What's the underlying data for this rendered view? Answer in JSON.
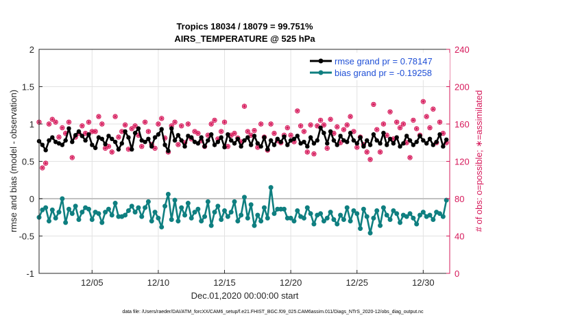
{
  "chart_data": {
    "type": "line",
    "title_line1": "Tropics 18034 / 18079 = 99.751%",
    "title_line2": "AIRS_TEMPERATURE @ 525 hPa",
    "xlabel": "Dec.01,2020 00:00:00 start",
    "ylabel_left": "rmse and bias (model - observation)",
    "ylabel_right": "# of obs: o=possible; ∗=assimilated",
    "xlim": [
      0,
      31
    ],
    "ylim_left": [
      -1,
      2
    ],
    "ylim_right": [
      0,
      240
    ],
    "x_ticks": [
      {
        "value": 4,
        "label": "12/05"
      },
      {
        "value": 9,
        "label": "12/10"
      },
      {
        "value": 14,
        "label": "12/15"
      },
      {
        "value": 19,
        "label": "12/20"
      },
      {
        "value": 24,
        "label": "12/25"
      },
      {
        "value": 29,
        "label": "12/30"
      }
    ],
    "yleft_ticks": [
      {
        "value": -1,
        "label": "-1"
      },
      {
        "value": -0.5,
        "label": "-0.5"
      },
      {
        "value": 0,
        "label": "0"
      },
      {
        "value": 0.5,
        "label": "0.5"
      },
      {
        "value": 1,
        "label": "1"
      },
      {
        "value": 1.5,
        "label": "1.5"
      },
      {
        "value": 2,
        "label": "2"
      }
    ],
    "yright_ticks": [
      {
        "value": 0,
        "label": "0"
      },
      {
        "value": 40,
        "label": "40"
      },
      {
        "value": 80,
        "label": "80"
      },
      {
        "value": 120,
        "label": "120"
      },
      {
        "value": 160,
        "label": "160"
      },
      {
        "value": 200,
        "label": "200"
      },
      {
        "value": 240,
        "label": "240"
      }
    ],
    "grid": true,
    "legend_position": "top-right",
    "legend": [
      {
        "name": "rmse grand pr = 0.78147",
        "color": "#000000"
      },
      {
        "name": "bias grand pr = -0.19258",
        "color": "#0f7f80"
      }
    ],
    "zero_line": 0,
    "series": [
      {
        "name": "rmse",
        "axis": "left",
        "color": "#000000",
        "x": [
          0.0,
          0.25,
          0.5,
          0.75,
          1.0,
          1.25,
          1.5,
          1.75,
          2.0,
          2.25,
          2.5,
          2.75,
          3.0,
          3.25,
          3.5,
          3.75,
          4.0,
          4.25,
          4.5,
          4.75,
          5.0,
          5.25,
          5.5,
          5.75,
          6.0,
          6.25,
          6.5,
          6.75,
          7.0,
          7.25,
          7.5,
          7.75,
          8.0,
          8.25,
          8.5,
          8.75,
          9.0,
          9.25,
          9.5,
          9.75,
          10.0,
          10.25,
          10.5,
          10.75,
          11.0,
          11.25,
          11.5,
          11.75,
          12.0,
          12.25,
          12.5,
          12.75,
          13.0,
          13.25,
          13.5,
          13.75,
          14.0,
          14.25,
          14.5,
          14.75,
          15.0,
          15.25,
          15.5,
          15.75,
          16.0,
          16.25,
          16.5,
          16.75,
          17.0,
          17.25,
          17.5,
          17.75,
          18.0,
          18.25,
          18.5,
          18.75,
          19.0,
          19.25,
          19.5,
          19.75,
          20.0,
          20.25,
          20.5,
          20.75,
          21.0,
          21.25,
          21.5,
          21.75,
          22.0,
          22.25,
          22.5,
          22.75,
          23.0,
          23.25,
          23.5,
          23.75,
          24.0,
          24.25,
          24.5,
          24.75,
          25.0,
          25.25,
          25.5,
          25.75,
          26.0,
          26.25,
          26.5,
          26.75,
          27.0,
          27.25,
          27.5,
          27.75,
          28.0,
          28.25,
          28.5,
          28.75,
          29.0,
          29.25,
          29.5,
          29.75,
          30.0,
          30.25,
          30.5,
          30.75
        ],
        "values": [
          0.77,
          0.72,
          0.65,
          0.78,
          0.82,
          0.76,
          0.74,
          0.72,
          0.78,
          0.94,
          0.76,
          0.85,
          0.9,
          0.84,
          0.78,
          0.86,
          0.72,
          0.68,
          0.82,
          0.8,
          0.73,
          0.84,
          0.8,
          0.76,
          0.66,
          0.74,
          0.9,
          0.82,
          0.66,
          0.88,
          0.94,
          0.78,
          0.76,
          0.8,
          0.7,
          0.82,
          0.86,
          0.93,
          0.72,
          0.64,
          0.94,
          0.78,
          0.85,
          0.78,
          0.7,
          0.84,
          0.82,
          0.76,
          0.74,
          0.82,
          0.7,
          0.78,
          0.86,
          0.72,
          0.76,
          0.82,
          0.69,
          0.86,
          0.78,
          0.74,
          0.8,
          0.7,
          0.78,
          0.82,
          0.72,
          0.84,
          0.74,
          0.7,
          0.82,
          0.66,
          0.78,
          0.72,
          0.8,
          0.76,
          0.83,
          0.72,
          0.78,
          0.8,
          0.84,
          0.74,
          0.76,
          0.7,
          0.82,
          0.74,
          0.78,
          0.95,
          0.88,
          0.74,
          0.9,
          0.78,
          0.72,
          0.84,
          0.78,
          0.76,
          0.88,
          0.78,
          0.74,
          0.82,
          0.7,
          0.78,
          0.72,
          0.86,
          0.78,
          0.74,
          0.88,
          0.72,
          0.8,
          0.74,
          0.82,
          0.7,
          0.74,
          0.84,
          0.78,
          0.72,
          0.76,
          0.84,
          0.78,
          0.74,
          0.8,
          0.72,
          0.76,
          0.86,
          0.7,
          0.79
        ]
      },
      {
        "name": "bias",
        "axis": "left",
        "color": "#0f7f80",
        "x": [
          0.0,
          0.25,
          0.5,
          0.75,
          1.0,
          1.25,
          1.5,
          1.75,
          2.0,
          2.25,
          2.5,
          2.75,
          3.0,
          3.25,
          3.5,
          3.75,
          4.0,
          4.25,
          4.5,
          4.75,
          5.0,
          5.25,
          5.5,
          5.75,
          6.0,
          6.25,
          6.5,
          6.75,
          7.0,
          7.25,
          7.5,
          7.75,
          8.0,
          8.25,
          8.5,
          8.75,
          9.0,
          9.25,
          9.5,
          9.75,
          10.0,
          10.25,
          10.5,
          10.75,
          11.0,
          11.25,
          11.5,
          11.75,
          12.0,
          12.25,
          12.5,
          12.75,
          13.0,
          13.25,
          13.5,
          13.75,
          14.0,
          14.25,
          14.5,
          14.75,
          15.0,
          15.25,
          15.5,
          15.75,
          16.0,
          16.25,
          16.5,
          16.75,
          17.0,
          17.25,
          17.5,
          17.75,
          18.0,
          18.25,
          18.5,
          18.75,
          19.0,
          19.25,
          19.5,
          19.75,
          20.0,
          20.25,
          20.5,
          20.75,
          21.0,
          21.25,
          21.5,
          21.75,
          22.0,
          22.25,
          22.5,
          22.75,
          23.0,
          23.25,
          23.5,
          23.75,
          24.0,
          24.25,
          24.5,
          24.75,
          25.0,
          25.25,
          25.5,
          25.75,
          26.0,
          26.25,
          26.5,
          26.75,
          27.0,
          27.25,
          27.5,
          27.75,
          28.0,
          28.25,
          28.5,
          28.75,
          29.0,
          29.25,
          29.5,
          29.75,
          30.0,
          30.25,
          30.5,
          30.75
        ],
        "values": [
          -0.25,
          -0.15,
          -0.12,
          -0.3,
          -0.15,
          -0.26,
          -0.18,
          0.0,
          -0.32,
          -0.14,
          -0.2,
          -0.1,
          -0.28,
          -0.18,
          -0.12,
          -0.14,
          -0.28,
          -0.18,
          -0.2,
          -0.32,
          -0.18,
          -0.14,
          -0.22,
          -0.06,
          -0.24,
          -0.24,
          -0.22,
          -0.16,
          -0.1,
          -0.18,
          -0.12,
          -0.24,
          -0.12,
          -0.04,
          -0.3,
          -0.18,
          -0.26,
          -0.38,
          -0.1,
          0.06,
          -0.28,
          -0.02,
          -0.3,
          -0.12,
          -0.22,
          -0.06,
          -0.26,
          -0.18,
          -0.14,
          -0.3,
          -0.24,
          -0.04,
          -0.36,
          -0.18,
          -0.1,
          -0.28,
          -0.16,
          -0.24,
          -0.18,
          -0.04,
          -0.3,
          -0.22,
          0.02,
          -0.26,
          -0.08,
          -0.36,
          -0.22,
          -0.3,
          -0.12,
          -0.26,
          0.15,
          -0.2,
          -0.14,
          -0.14,
          -0.14,
          -0.26,
          -0.26,
          -0.3,
          -0.16,
          -0.24,
          -0.26,
          -0.12,
          -0.2,
          -0.34,
          -0.22,
          -0.2,
          -0.3,
          -0.26,
          -0.18,
          -0.28,
          -0.34,
          -0.22,
          -0.28,
          -0.12,
          -0.3,
          -0.16,
          -0.2,
          -0.4,
          -0.14,
          -0.24,
          -0.46,
          -0.26,
          -0.16,
          -0.36,
          -0.12,
          -0.22,
          -0.28,
          -0.16,
          -0.2,
          -0.32,
          -0.22,
          -0.24,
          -0.2,
          -0.26,
          -0.34,
          -0.22,
          -0.18,
          -0.24,
          -0.22,
          -0.28,
          -0.18,
          -0.2,
          -0.24,
          -0.02
        ]
      }
    ],
    "obs_counts": {
      "axis": "right",
      "color": "#d6185a",
      "x": [
        0.0,
        0.25,
        0.5,
        0.75,
        1.0,
        1.25,
        1.5,
        1.75,
        2.0,
        2.25,
        2.5,
        2.75,
        3.0,
        3.25,
        3.5,
        3.75,
        4.0,
        4.25,
        4.5,
        4.75,
        5.0,
        5.25,
        5.5,
        5.75,
        6.0,
        6.25,
        6.5,
        6.75,
        7.0,
        7.25,
        7.5,
        7.75,
        8.0,
        8.25,
        8.5,
        8.75,
        9.0,
        9.25,
        9.5,
        9.75,
        10.0,
        10.25,
        10.5,
        10.75,
        11.0,
        11.25,
        11.5,
        11.75,
        12.0,
        12.25,
        12.5,
        12.75,
        13.0,
        13.25,
        13.5,
        13.75,
        14.0,
        14.25,
        14.5,
        14.75,
        15.0,
        15.25,
        15.5,
        15.75,
        16.0,
        16.25,
        16.5,
        16.75,
        17.0,
        17.25,
        17.5,
        17.75,
        18.0,
        18.25,
        18.5,
        18.75,
        19.0,
        19.25,
        19.5,
        19.75,
        20.0,
        20.25,
        20.5,
        20.75,
        21.0,
        21.25,
        21.5,
        21.75,
        22.0,
        22.25,
        22.5,
        22.75,
        23.0,
        23.25,
        23.5,
        23.75,
        24.0,
        24.25,
        24.5,
        24.75,
        25.0,
        25.25,
        25.5,
        25.75,
        26.0,
        26.25,
        26.5,
        26.75,
        27.0,
        27.25,
        27.5,
        27.75,
        28.0,
        28.25,
        28.5,
        28.75,
        29.0,
        29.25,
        29.5,
        29.75,
        30.0,
        30.25,
        30.5,
        30.75
      ],
      "values": [
        162,
        113,
        118,
        160,
        165,
        162,
        146,
        156,
        150,
        162,
        124,
        146,
        150,
        158,
        150,
        162,
        152,
        152,
        168,
        160,
        134,
        136,
        130,
        168,
        146,
        152,
        159,
        133,
        155,
        158,
        148,
        136,
        162,
        152,
        138,
        134,
        160,
        166,
        145,
        130,
        158,
        162,
        138,
        158,
        140,
        160,
        144,
        152,
        150,
        142,
        136,
        148,
        160,
        164,
        144,
        152,
        162,
        136,
        148,
        150,
        145,
        141,
        179,
        152,
        148,
        153,
        135,
        160,
        146,
        132,
        160,
        150,
        142,
        140,
        148,
        156,
        148,
        141,
        174,
        158,
        152,
        130,
        159,
        128,
        158,
        164,
        159,
        134,
        165,
        150,
        157,
        140,
        154,
        159,
        168,
        152,
        135,
        146,
        138,
        130,
        122,
        181,
        154,
        130,
        160,
        148,
        173,
        144,
        162,
        156,
        160,
        140,
        124,
        164,
        155,
        148,
        184,
        168,
        156,
        176,
        140,
        162,
        150,
        140
      ]
    }
  },
  "footer_text": "data file: /Users/raeder/DAI/ATM_forcXX/CAM6_setup/f.e21.FHIST_BGC.f09_025.CAM6assim.011/Diags_NTrS_2020-12/obs_diag_output.nc"
}
